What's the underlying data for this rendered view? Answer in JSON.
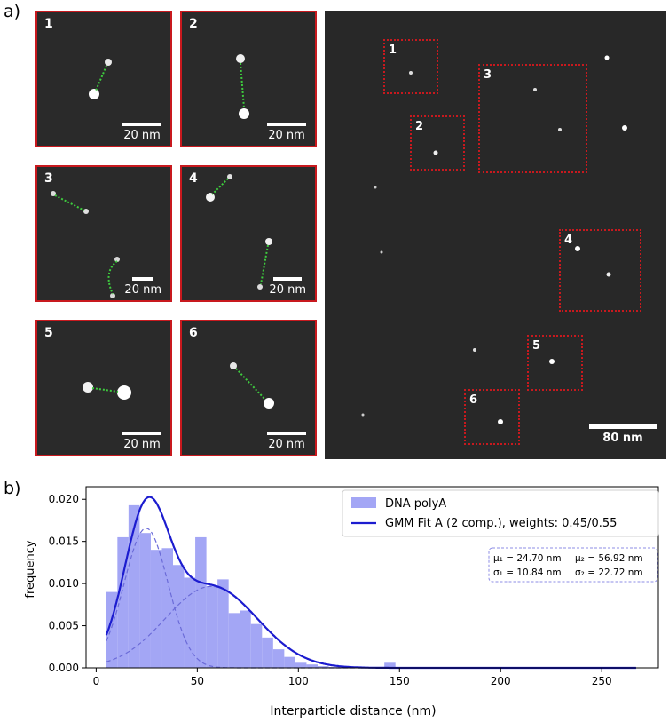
{
  "figure": {
    "panel_a_label": "a)",
    "panel_b_label": "b)",
    "tiles": [
      {
        "num": "1",
        "scale_label": "20 nm"
      },
      {
        "num": "2",
        "scale_label": "20 nm"
      },
      {
        "num": "3",
        "scale_label": "20 nm"
      },
      {
        "num": "4",
        "scale_label": "20 nm"
      },
      {
        "num": "5",
        "scale_label": "20 nm"
      },
      {
        "num": "6",
        "scale_label": "20 nm"
      }
    ],
    "overview": {
      "regions": [
        "1",
        "2",
        "3",
        "4",
        "5",
        "6"
      ],
      "scale_label": "80 nm"
    }
  },
  "chart_data": {
    "type": "bar",
    "xlabel": "Interparticle distance (nm)",
    "ylabel": "frequency",
    "xlim": [
      -5,
      278
    ],
    "ylim": [
      0,
      0.0215
    ],
    "xticks": [
      0,
      50,
      100,
      150,
      200,
      250
    ],
    "yticks": [
      0.0,
      0.005,
      0.01,
      0.015,
      0.02
    ],
    "ytick_labels": [
      "0.000",
      "0.005",
      "0.010",
      "0.015",
      "0.020"
    ],
    "legend_position": "top-right",
    "histogram": {
      "name": "DNA polyA",
      "color": "#a3a6f5",
      "bin_edges": [
        5,
        10.5,
        16,
        21.5,
        27,
        32.5,
        38,
        43.5,
        49,
        54.5,
        60,
        65.5,
        71,
        76.5,
        82,
        87.5,
        93,
        98.5,
        104,
        109.5,
        115,
        120.5,
        126,
        131.5,
        137,
        142.5,
        148
      ],
      "values": [
        0.009,
        0.0155,
        0.0193,
        0.016,
        0.014,
        0.0142,
        0.0122,
        0.0107,
        0.0155,
        0.0097,
        0.0105,
        0.0065,
        0.0068,
        0.0052,
        0.0036,
        0.0022,
        0.0013,
        0.0006,
        0.0004,
        0.0002,
        0.0001,
        0.0,
        0.0,
        0.0001,
        0.0,
        0.0006
      ]
    },
    "fit": {
      "name": "GMM Fit A (2 comp.), weights: 0.45/0.55",
      "color": "#1c1ccf",
      "weights": [
        0.45,
        0.55
      ],
      "mu": [
        24.7,
        56.92
      ],
      "sigma": [
        10.84,
        22.72
      ],
      "x_range": [
        5,
        267
      ]
    },
    "annotation": {
      "mu1": "μ₁ = 24.70 nm",
      "mu2": "μ₂ = 56.92 nm",
      "sigma1": "σ₁ = 10.84 nm",
      "sigma2": "σ₂ = 22.72 nm"
    }
  }
}
